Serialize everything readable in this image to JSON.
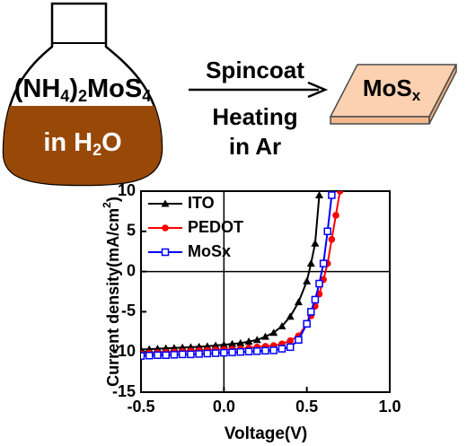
{
  "diagram": {
    "flask_label": [
      "(NH",
      "4",
      ")",
      "2",
      "MoS",
      "4"
    ],
    "flask_solvent": [
      "in H",
      "2",
      "O"
    ],
    "arrow_top": "Spincoat",
    "arrow_bottom": [
      "Heating",
      "in Ar"
    ],
    "product": [
      "MoS",
      "x"
    ]
  },
  "chart_data": {
    "type": "line",
    "xlabel": "Voltage(V)",
    "ylabel": [
      "Current density(mA/cm",
      "2",
      ")"
    ],
    "x": [
      -0.5,
      -0.45,
      -0.4,
      -0.35,
      -0.3,
      -0.25,
      -0.2,
      -0.15,
      -0.1,
      -0.05,
      0,
      0.05,
      0.1,
      0.15,
      0.2,
      0.25,
      0.3,
      0.35,
      0.4,
      0.45,
      0.5,
      0.525,
      0.55,
      0.575,
      0.6,
      0.625,
      0.65,
      0.675,
      0.7
    ],
    "series": [
      {
        "name": "ITO",
        "color": "#000000",
        "marker": "triangle",
        "values": [
          -9.7,
          -9.65,
          -9.6,
          -9.55,
          -9.5,
          -9.45,
          -9.4,
          -9.35,
          -9.3,
          -9.2,
          -9.1,
          -9.0,
          -8.9,
          -8.7,
          -8.5,
          -8.1,
          -7.6,
          -6.8,
          -5.6,
          -3.8,
          -1.2,
          1.0,
          3.5,
          9.5,
          null,
          null,
          null,
          null,
          null
        ]
      },
      {
        "name": "PEDOT",
        "color": "#ff0000",
        "marker": "circle",
        "values": [
          -10.2,
          -10.15,
          -10.1,
          -10.05,
          -10.0,
          -9.95,
          -9.9,
          -9.85,
          -9.8,
          -9.75,
          -9.7,
          -9.65,
          -9.6,
          -9.5,
          -9.4,
          -9.3,
          -9.2,
          -9.0,
          -8.6,
          -8.0,
          -6.5,
          -5.5,
          -4.3,
          -2.8,
          -1.0,
          1.0,
          4.0,
          7.0,
          10
        ]
      },
      {
        "name": "MoSx",
        "color": "#0000ff",
        "marker": "square",
        "values": [
          -10.5,
          -10.45,
          -10.4,
          -10.4,
          -10.35,
          -10.3,
          -10.3,
          -10.25,
          -10.2,
          -10.15,
          -10.1,
          -10.05,
          -10.0,
          -9.95,
          -9.9,
          -9.85,
          -9.8,
          -9.6,
          -9.4,
          -8.5,
          -6.5,
          -5.0,
          -3.5,
          -1.5,
          1.0,
          5.0,
          9.5,
          null,
          null
        ]
      }
    ],
    "xlim": [
      -0.5,
      1.0
    ],
    "ylim": [
      -15,
      10
    ],
    "xticks": [
      {
        "value": -0.5,
        "label": "-0.5"
      },
      {
        "value": 0,
        "label": "0.0"
      },
      {
        "value": 0.5,
        "label": "0.5"
      },
      {
        "value": 1.0,
        "label": "1.0"
      }
    ],
    "yticks": [
      -15,
      -10,
      -5,
      0,
      5,
      10
    ],
    "legend": "upper left"
  }
}
